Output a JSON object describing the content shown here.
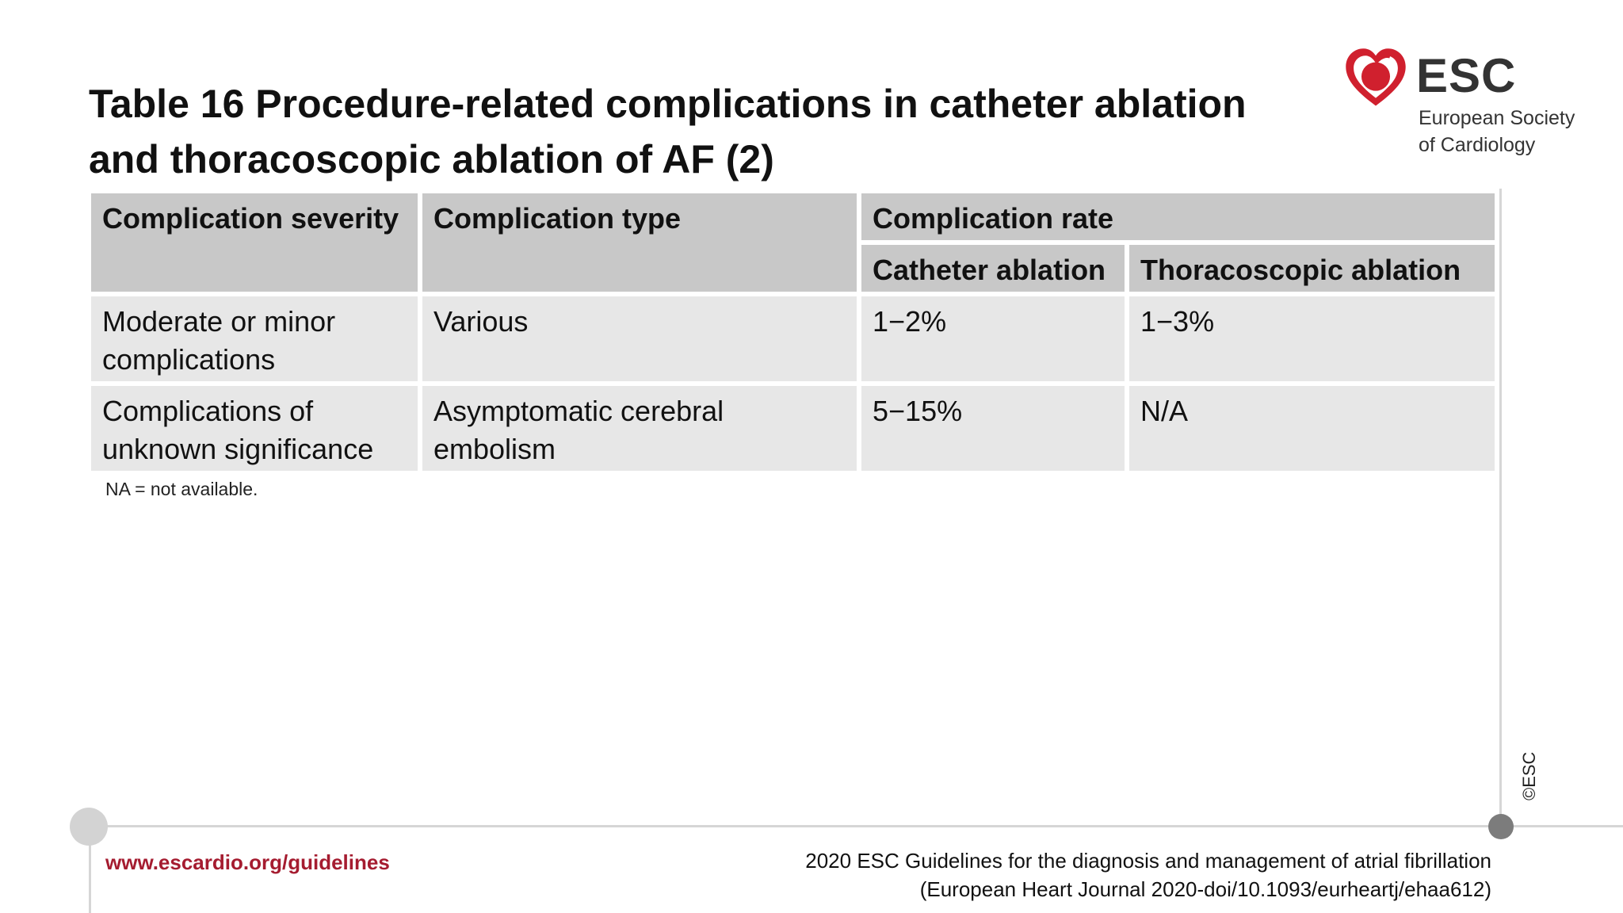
{
  "title": "Table 16 Procedure-related complications in catheter ablation and thoracoscopic ablation of AF (2)",
  "logo": {
    "name": "ESC",
    "tagline_line1": "European Society",
    "tagline_line2": "of Cardiology"
  },
  "table": {
    "headers": {
      "severity": "Complication severity",
      "type": "Complication type",
      "rate": "Complication rate",
      "catheter": "Catheter ablation",
      "thoracoscopic": "Thoracoscopic ablation"
    },
    "rows": [
      {
        "severity": "Moderate or minor complications",
        "type": "Various",
        "catheter": "1−2%",
        "thoracoscopic": "1−3%"
      },
      {
        "severity": "Complications of unknown significance",
        "type": "Asymptomatic cerebral embolism",
        "catheter": "5−15%",
        "thoracoscopic": "N/A"
      }
    ],
    "note": "NA = not available."
  },
  "copyright": "©ESC",
  "footer": {
    "link": "www.escardio.org/guidelines",
    "ref_line1": "2020 ESC Guidelines for the diagnosis and management of atrial fibrillation",
    "ref_line2": "(European Heart Journal 2020-doi/10.1093/eurheartj/ehaa612)"
  },
  "colors": {
    "accent": "#a51c30",
    "header_bg": "#c8c8c8",
    "cell_bg": "#e7e7e7",
    "logo_red": "#d0202e"
  }
}
